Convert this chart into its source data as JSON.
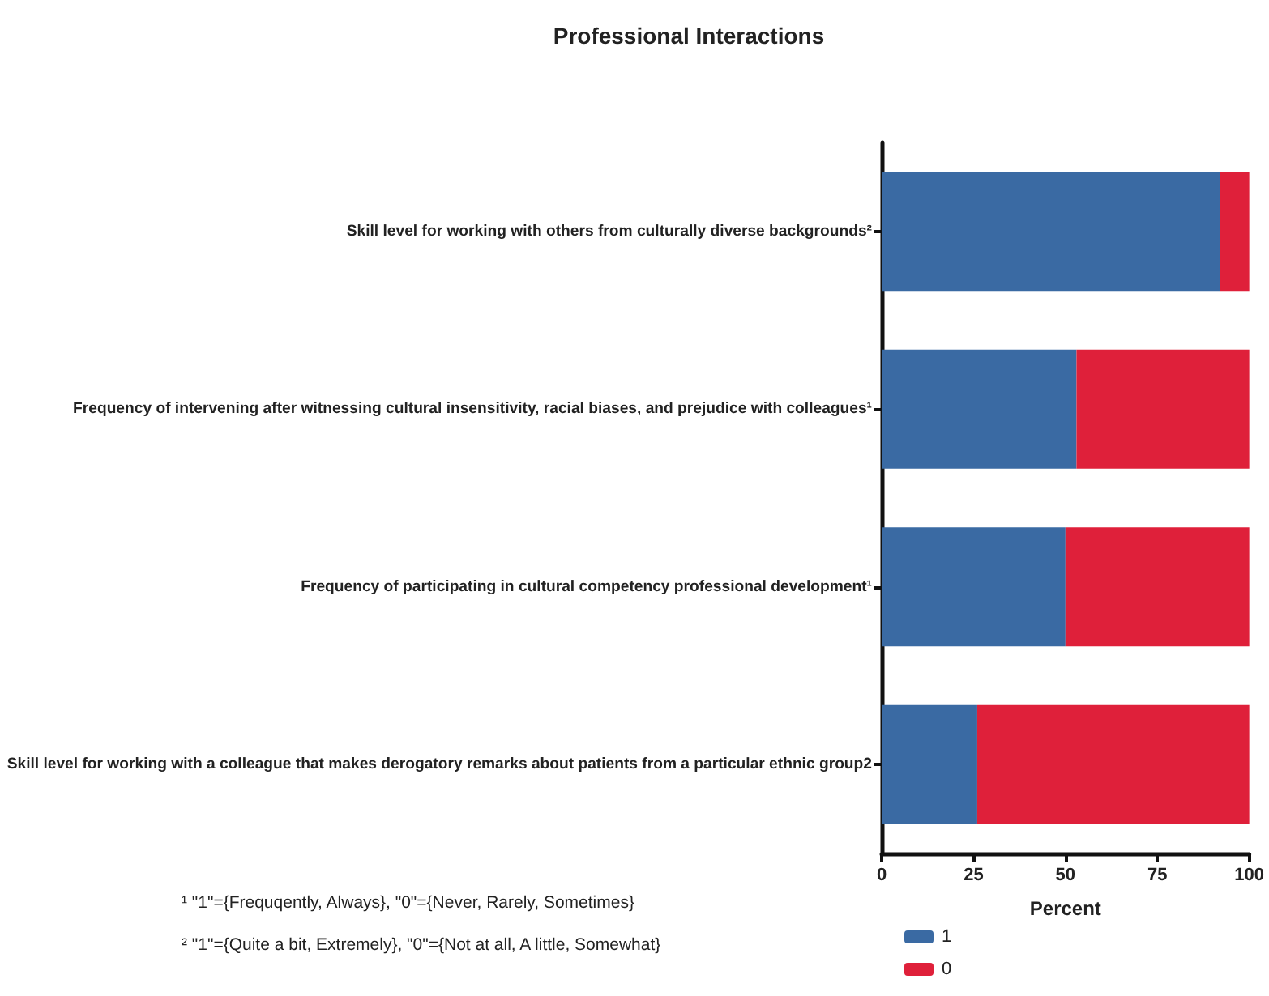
{
  "chart_data": {
    "type": "bar",
    "orientation": "horizontal",
    "stacked": true,
    "title": "Professional Interactions",
    "xlabel": "Percent",
    "categories": [
      "Skill level for working with others from culturally diverse backgrounds²",
      "Frequency of intervening after witnessing cultural insensitivity, racial biases, and prejudice with colleagues¹",
      "Frequency of participating in cultural competency professional development¹",
      "Skill level for working with a colleague that makes derogatory remarks about patients from a particular ethnic group2"
    ],
    "series": [
      {
        "name": "1",
        "color": "#3a6aa3",
        "values": [
          92,
          53,
          50,
          26
        ]
      },
      {
        "name": "0",
        "color": "#df203a",
        "values": [
          8,
          47,
          50,
          74
        ]
      }
    ],
    "xlim": [
      0,
      100
    ],
    "xticks": [
      0,
      25,
      50,
      75,
      100
    ],
    "grid": false,
    "legend": "bottom left",
    "annotations": [
      "¹ \"1\"={Frequqently, Always}, \"0\"={Never, Rarely, Sometimes}",
      "² \"1\"={Quite a bit, Extremely}, \"0\"={Not at all, A little, Somewhat}"
    ]
  }
}
